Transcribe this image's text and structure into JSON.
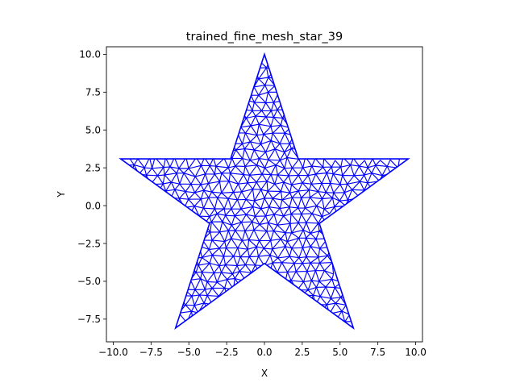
{
  "title": "trained_fine_mesh_star_39",
  "xlabel": "X",
  "ylabel": "Y",
  "xlim": [
    -10.45,
    10.45
  ],
  "ylim": [
    -9.0,
    10.5
  ],
  "xticks": [
    {
      "v": -10.0,
      "label": "−10.0"
    },
    {
      "v": -7.5,
      "label": "−7.5"
    },
    {
      "v": -5.0,
      "label": "−5.0"
    },
    {
      "v": -2.5,
      "label": "−2.5"
    },
    {
      "v": 0.0,
      "label": "0.0"
    },
    {
      "v": 2.5,
      "label": "2.5"
    },
    {
      "v": 5.0,
      "label": "5.0"
    },
    {
      "v": 7.5,
      "label": "7.5"
    },
    {
      "v": 10.0,
      "label": "10.0"
    }
  ],
  "yticks": [
    {
      "v": -7.5,
      "label": "−7.5"
    },
    {
      "v": -5.0,
      "label": "−5.0"
    },
    {
      "v": -2.5,
      "label": "−2.5"
    },
    {
      "v": 0.0,
      "label": "0.0"
    },
    {
      "v": 2.5,
      "label": "2.5"
    },
    {
      "v": 5.0,
      "label": "5.0"
    },
    {
      "v": 7.5,
      "label": "7.5"
    },
    {
      "v": 10.0,
      "label": "10.0"
    }
  ],
  "mesh_color": "#0000ff",
  "outline": [
    [
      0.0,
      10.0
    ],
    [
      2.24,
      3.09
    ],
    [
      9.51,
      3.09
    ],
    [
      3.63,
      -1.18
    ],
    [
      5.88,
      -8.09
    ],
    [
      0.0,
      -3.82
    ],
    [
      -5.88,
      -8.09
    ],
    [
      -3.63,
      -1.18
    ],
    [
      -9.51,
      3.09
    ],
    [
      -2.24,
      3.09
    ]
  ],
  "grid": false
}
